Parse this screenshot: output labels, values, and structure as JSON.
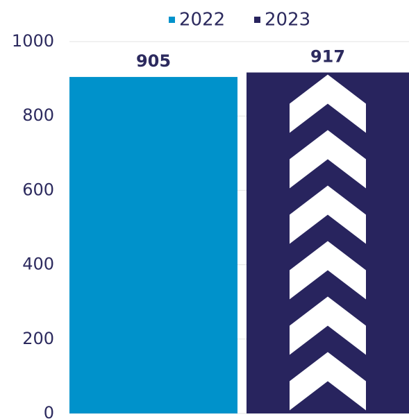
{
  "chart_data": {
    "type": "bar",
    "categories": [
      null
    ],
    "series": [
      {
        "name": "2022",
        "color": "#0092cb",
        "values": [
          905
        ]
      },
      {
        "name": "2023",
        "color": "#28245e",
        "values": [
          917
        ]
      }
    ],
    "ylim": [
      0,
      1000
    ],
    "yticks": [
      0,
      200,
      400,
      600,
      800,
      1000
    ],
    "grid": true,
    "legend": "top"
  }
}
